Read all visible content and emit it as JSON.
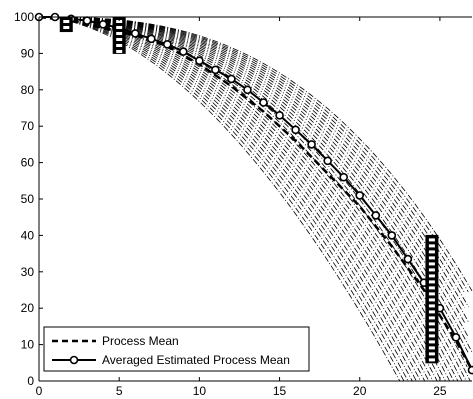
{
  "chart_data": {
    "type": "line",
    "title": "",
    "xlabel": "",
    "ylabel": "",
    "xlim": [
      0,
      27
    ],
    "ylim": [
      0,
      100
    ],
    "xticks": [
      0,
      5,
      10,
      15,
      20,
      25
    ],
    "yticks": [
      0,
      10,
      20,
      30,
      40,
      50,
      60,
      70,
      80,
      90,
      100
    ],
    "grid": false,
    "legend_position": "bottom-left",
    "legend_entries": [
      "Process Mean",
      "Averaged Estimated Process Mean"
    ],
    "series": [
      {
        "name": "Process Mean",
        "style": "dashed",
        "color": "#000000",
        "x": [
          0,
          2,
          4,
          6,
          8,
          10,
          12,
          14,
          16,
          18,
          20,
          22,
          24,
          26,
          27
        ],
        "y": [
          100,
          99,
          97,
          95,
          92,
          87,
          81,
          74,
          66,
          57,
          48,
          37,
          25,
          11,
          3
        ]
      },
      {
        "name": "Averaged Estimated Process Mean",
        "style": "solid-circle-markers",
        "color": "#000000",
        "x": [
          0,
          1,
          2,
          3,
          4,
          5,
          6,
          7,
          8,
          9,
          10,
          11,
          12,
          13,
          14,
          15,
          16,
          17,
          18,
          19,
          20,
          21,
          22,
          23,
          24,
          25,
          26,
          27
        ],
        "y": [
          100,
          100,
          99.5,
          99,
          98,
          97,
          95.5,
          94,
          92.5,
          90.5,
          88,
          85.5,
          83,
          80,
          76.5,
          73,
          69,
          65,
          60.5,
          56,
          51,
          45.5,
          40,
          33.5,
          27,
          20,
          12,
          3
        ]
      }
    ],
    "envelope_estimates": {
      "description_count": 30,
      "style": "dash-dot",
      "x_range": [
        0,
        27
      ],
      "y_start": 100
    },
    "interval_markers": [
      {
        "x": 1.7,
        "y_low": 96,
        "y_high": 100
      },
      {
        "x": 5.0,
        "y_low": 90,
        "y_high": 100
      },
      {
        "x": 24.5,
        "y_low": 5,
        "y_high": 40
      }
    ]
  }
}
